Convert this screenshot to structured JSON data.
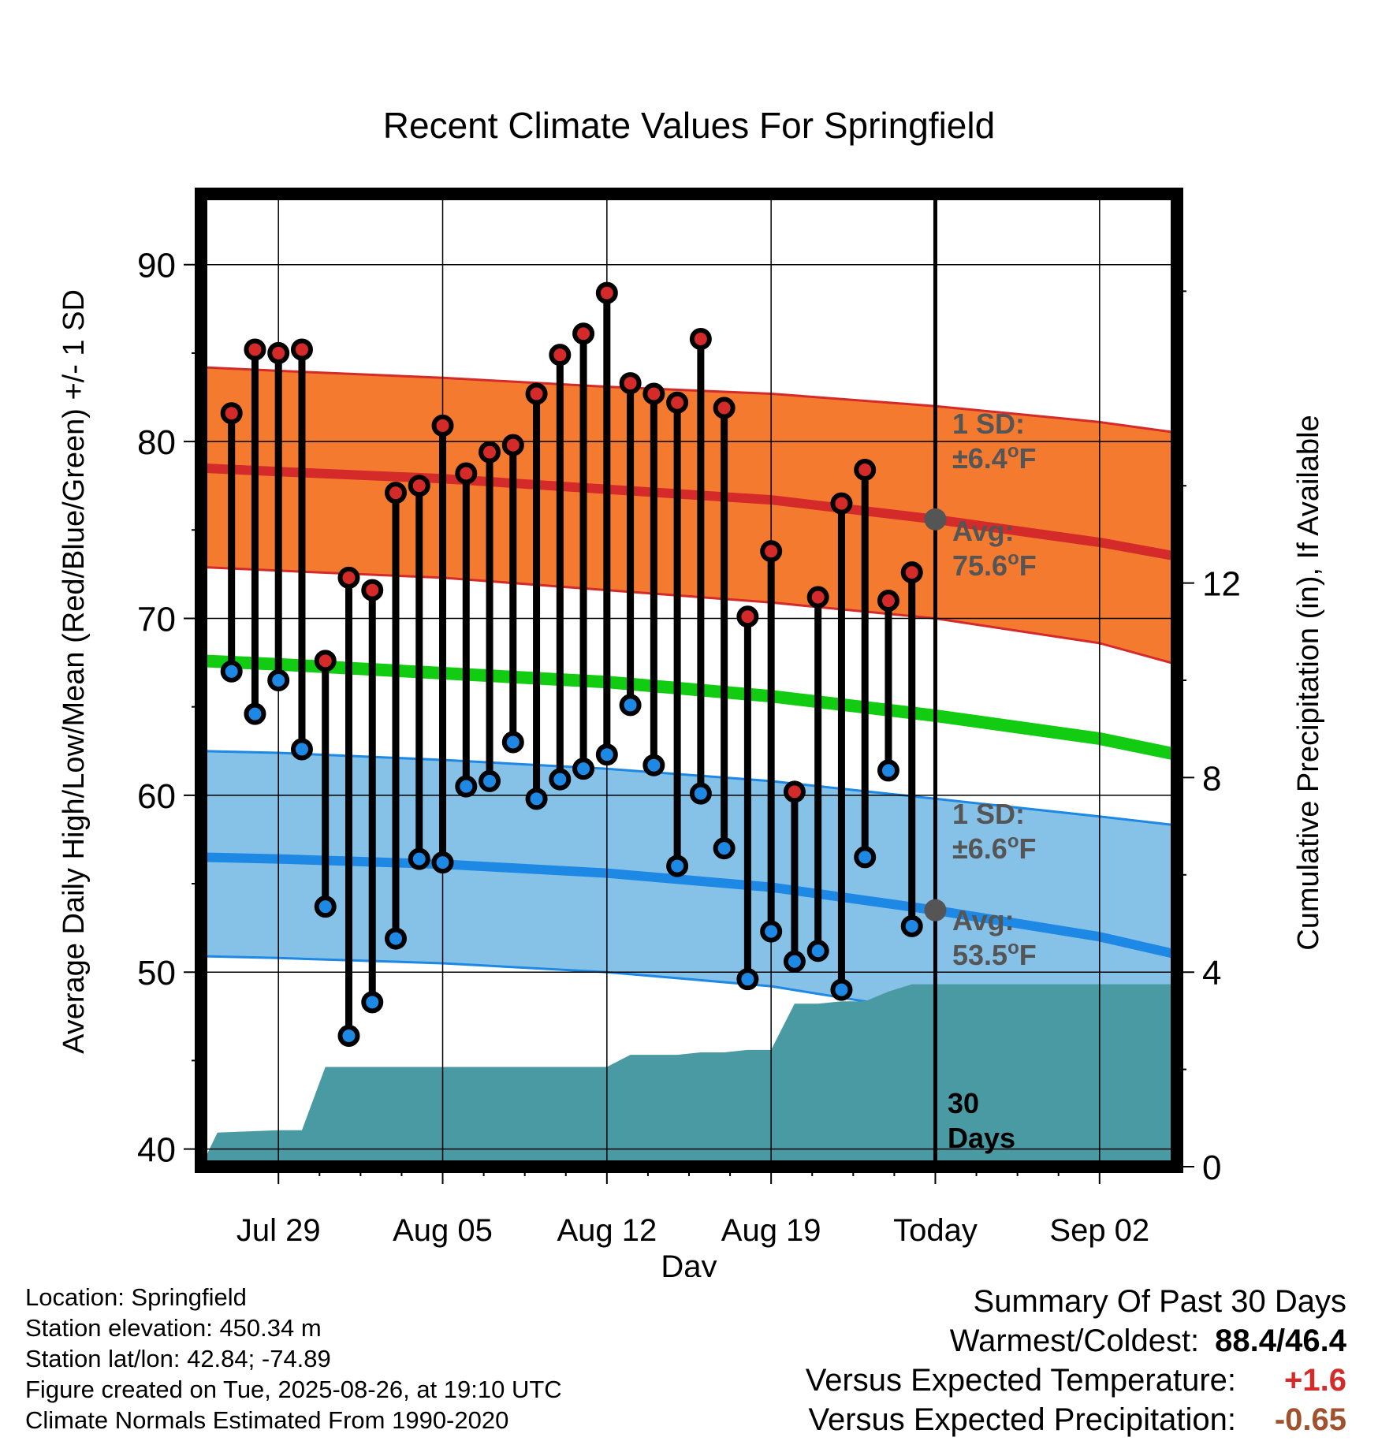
{
  "chart_data": {
    "type": "line",
    "title": "Recent Climate Values For Springfield",
    "xlabel": "Day",
    "ylabel": "Average Daily High/Low/Mean (Red/Blue/Green) +/- 1 SD",
    "y2label": "Cumulative Precipitation (in), If Available",
    "ylim": [
      39,
      94
    ],
    "y2lim": [
      0,
      20
    ],
    "yticks": [
      40,
      50,
      60,
      70,
      80,
      90
    ],
    "y2ticks": [
      0,
      4,
      8,
      12
    ],
    "xlim": [
      -3.3,
      38.3
    ],
    "xticks": [
      {
        "day": 0,
        "label": "Jul 29"
      },
      {
        "day": 7,
        "label": "Aug 05"
      },
      {
        "day": 14,
        "label": "Aug 12"
      },
      {
        "day": 21,
        "label": "Aug 19"
      },
      {
        "day": 28,
        "label": "Today"
      },
      {
        "day": 35,
        "label": "Sep 02"
      }
    ],
    "today_day": 28,
    "days": [
      -2,
      -1,
      0,
      1,
      2,
      3,
      4,
      5,
      6,
      7,
      8,
      9,
      10,
      11,
      12,
      13,
      14,
      15,
      16,
      17,
      18,
      19,
      20,
      21,
      22,
      23,
      24,
      25,
      26,
      27
    ],
    "series": [
      {
        "name": "Daily High",
        "color": "#d42a2a",
        "values": [
          81.6,
          85.2,
          85.0,
          85.2,
          67.6,
          72.3,
          71.6,
          77.1,
          77.5,
          80.9,
          78.2,
          79.4,
          79.8,
          82.7,
          84.9,
          86.1,
          88.4,
          83.3,
          82.7,
          82.2,
          85.8,
          81.9,
          70.1,
          73.8,
          60.2,
          71.2,
          76.5,
          78.4,
          71.0,
          72.6
        ]
      },
      {
        "name": "Daily Low",
        "color": "#1e88e5",
        "values": [
          67.0,
          64.6,
          66.5,
          62.6,
          53.7,
          46.4,
          48.3,
          51.9,
          56.4,
          56.2,
          60.5,
          60.8,
          63.0,
          59.8,
          60.9,
          61.5,
          62.3,
          65.1,
          61.7,
          56.0,
          60.1,
          57.0,
          49.6,
          52.3,
          50.6,
          51.2,
          49.0,
          56.5,
          61.4,
          52.6
        ]
      },
      {
        "name": "Normal High",
        "color": "#d42a2a",
        "days": [
          -3.3,
          0,
          7,
          14,
          21,
          28,
          35,
          38.3
        ],
        "values": [
          78.5,
          78.3,
          77.9,
          77.3,
          76.7,
          75.6,
          74.3,
          73.5
        ]
      },
      {
        "name": "Normal High +1 SD",
        "days": [
          -3.3,
          0,
          7,
          14,
          21,
          28,
          35,
          38.3
        ],
        "values": [
          84.2,
          84.0,
          83.6,
          83.1,
          82.7,
          82.0,
          81.1,
          80.5
        ]
      },
      {
        "name": "Normal High -1 SD",
        "days": [
          -3.3,
          0,
          7,
          14,
          21,
          28,
          35,
          38.3
        ],
        "values": [
          72.9,
          72.7,
          72.3,
          71.6,
          70.9,
          70.0,
          68.6,
          67.4
        ]
      },
      {
        "name": "Normal Mean",
        "color": "#11cc11",
        "days": [
          -3.3,
          0,
          7,
          14,
          21,
          28,
          35,
          38.3
        ],
        "values": [
          67.6,
          67.4,
          66.9,
          66.4,
          65.6,
          64.5,
          63.2,
          62.3
        ]
      },
      {
        "name": "Normal Low",
        "color": "#1e88e5",
        "days": [
          -3.3,
          0,
          7,
          14,
          21,
          28,
          35,
          38.3
        ],
        "values": [
          56.5,
          56.4,
          56.1,
          55.6,
          54.8,
          53.5,
          52.0,
          51.0
        ]
      },
      {
        "name": "Normal Low +1 SD",
        "days": [
          -3.3,
          0,
          7,
          14,
          21,
          28,
          35,
          38.3
        ],
        "values": [
          62.5,
          62.4,
          62.0,
          61.5,
          60.8,
          59.8,
          58.8,
          58.3
        ]
      },
      {
        "name": "Normal Low -1 SD",
        "days": [
          -3.3,
          0,
          7,
          14,
          21,
          28,
          35,
          38.3
        ],
        "values": [
          50.9,
          50.8,
          50.5,
          50.0,
          49.2,
          47.7,
          45.9,
          45.5
        ]
      },
      {
        "name": "Cumulative Precipitation",
        "color": "#4a9aa3",
        "days": [
          -3.3,
          -2.6,
          0,
          1,
          2,
          3,
          4,
          5,
          6,
          7,
          8,
          9,
          10,
          11,
          12,
          13,
          14,
          15,
          16,
          17,
          18,
          19,
          20,
          21,
          22,
          23,
          24,
          25,
          26,
          27,
          28,
          38.3
        ],
        "values": [
          0.0,
          0.7,
          0.75,
          0.75,
          2.05,
          2.05,
          2.05,
          2.05,
          2.05,
          2.05,
          2.05,
          2.05,
          2.05,
          2.05,
          2.05,
          2.05,
          2.05,
          2.3,
          2.3,
          2.3,
          2.35,
          2.35,
          2.4,
          2.4,
          3.35,
          3.35,
          3.4,
          3.4,
          3.6,
          3.75,
          3.75,
          3.75
        ]
      }
    ],
    "annotations": {
      "high_sd": {
        "line1": "1 SD:",
        "line2": "±6.4",
        "unit": "oF"
      },
      "high_avg": {
        "line1": "Avg:",
        "line2": "75.6",
        "unit": "oF",
        "value": 75.6
      },
      "low_sd": {
        "line1": "1 SD:",
        "line2": "±6.6",
        "unit": "oF"
      },
      "low_avg": {
        "line1": "Avg:",
        "line2": "53.5",
        "unit": "oF",
        "value": 53.5
      },
      "days_line1": "30",
      "days_line2": "Days"
    },
    "grid": true
  },
  "info": {
    "location": "Location: Springfield",
    "elevation": "Station elevation: 450.34 m",
    "latlon": "Station lat/lon: 42.84; -74.89",
    "created": "Figure created on Tue, 2025-08-26, at 19:10 UTC",
    "normals": "Climate Normals Estimated From 1990-2020"
  },
  "summary": {
    "title": "Summary Of Past 30 Days",
    "warm_cold_label": "Warmest/Coldest:",
    "warm_cold_value": "88.4/46.4",
    "temp_label": "Versus Expected Temperature:",
    "temp_value": "+1.6",
    "temp_color": "#d42a2a",
    "precip_label": "Versus Expected Precipitation:",
    "precip_value": "-0.65",
    "precip_color": "#a0522d"
  }
}
